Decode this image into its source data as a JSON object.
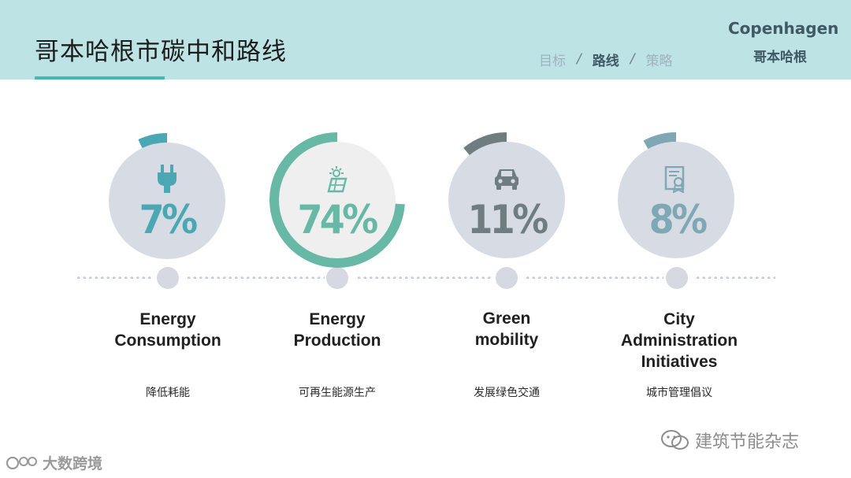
{
  "header": {
    "title": "哥本哈根市碳中和路线",
    "breadcrumb": [
      {
        "label": "目标",
        "active": false
      },
      {
        "label": "路线",
        "active": true
      },
      {
        "label": "策略",
        "active": false
      }
    ],
    "separator": "/",
    "brand_en": "Copenhagen",
    "brand_zh": "哥本哈根"
  },
  "metrics": [
    {
      "pct_value": 7,
      "pct_label": "7%",
      "label_lines": [
        "Energy",
        "Consumption"
      ],
      "zh": "降低耗能",
      "icon": "plug-icon",
      "color": "#4aa7b3"
    },
    {
      "pct_value": 74,
      "pct_label": "74%",
      "label_lines": [
        "Energy",
        "Production"
      ],
      "zh": "可再生能源生产",
      "icon": "solar-panel-icon",
      "color": "#68b8a6"
    },
    {
      "pct_value": 11,
      "pct_label": "11%",
      "label_lines": [
        "Green",
        "mobility"
      ],
      "zh": "发展绿色交通",
      "icon": "car-icon",
      "color": "#6f7d80"
    },
    {
      "pct_value": 8,
      "pct_label": "8%",
      "label_lines": [
        "City",
        "Administration",
        "Initiatives"
      ],
      "zh": "城市管理倡议",
      "icon": "certificate-icon",
      "color": "#7fa8b4"
    }
  ],
  "watermarks": {
    "right": "建筑节能杂志",
    "left": "大数跨境"
  }
}
